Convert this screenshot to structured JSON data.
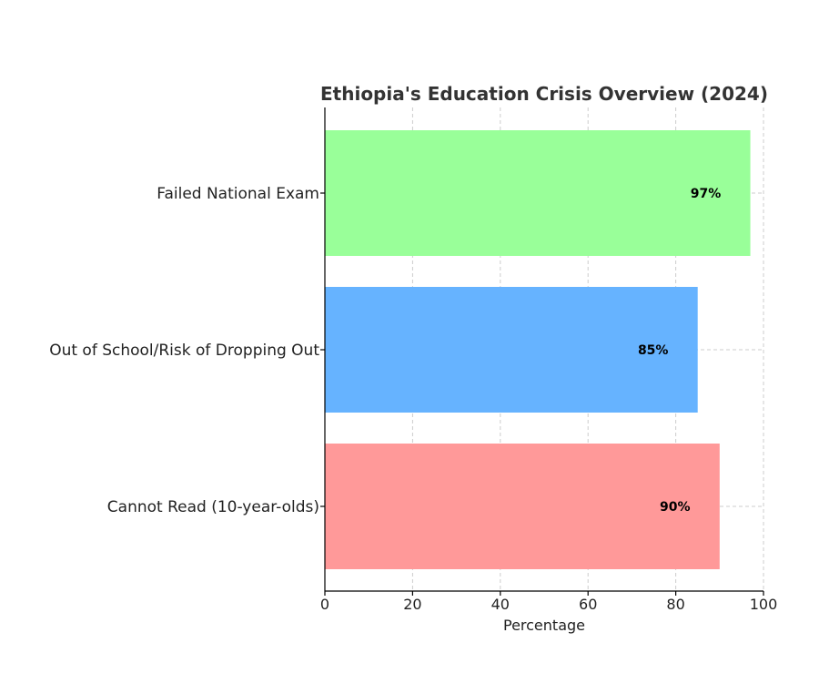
{
  "chart_data": {
    "type": "bar",
    "orientation": "horizontal",
    "title": "Ethiopia's Education Crisis Overview (2024)",
    "xlabel": "Percentage",
    "ylabel": "",
    "xlim": [
      0,
      100
    ],
    "x_ticks": [
      0,
      20,
      40,
      60,
      80,
      100
    ],
    "grid": true,
    "categories": [
      "Failed National Exam",
      "Out of School/Risk of Dropping Out",
      "Cannot Read (10-year-olds)"
    ],
    "values": [
      97,
      85,
      90
    ],
    "value_labels": [
      "97%",
      "85%",
      "90%"
    ],
    "colors": [
      "#99ff99",
      "#66b3ff",
      "#ff9999"
    ]
  }
}
